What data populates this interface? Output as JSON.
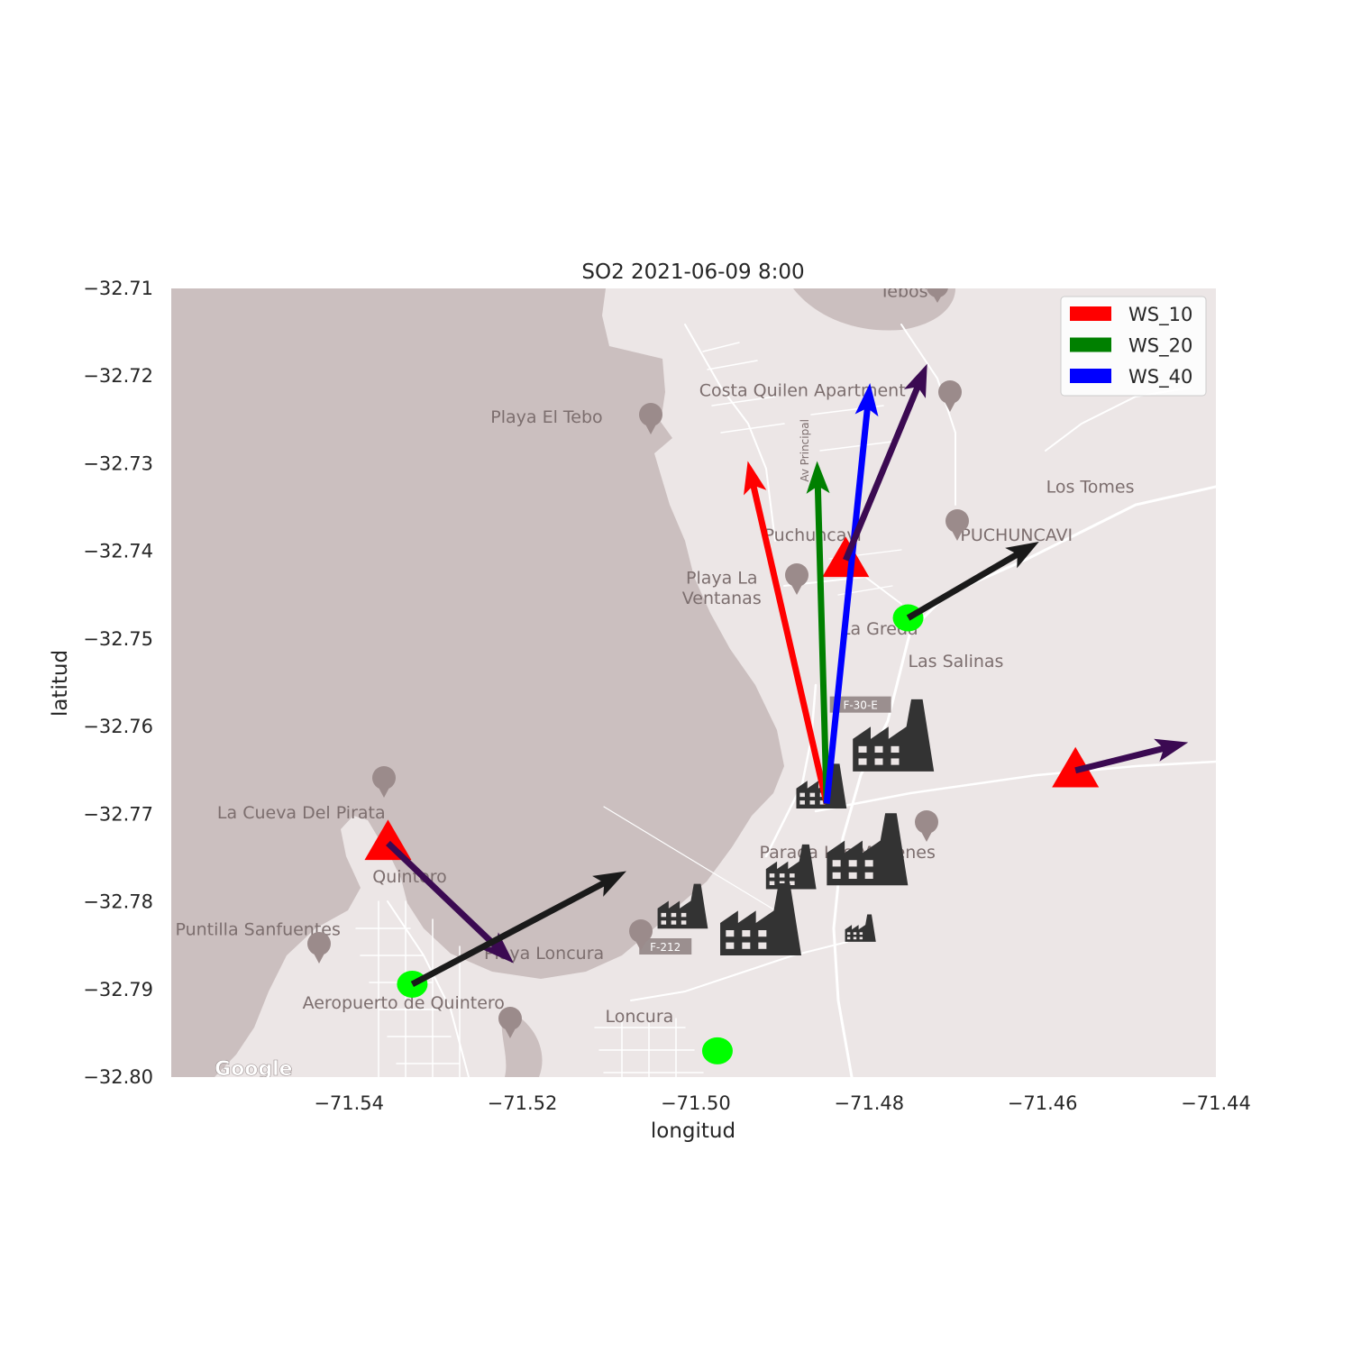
{
  "chart_data": {
    "type": "map-quiver",
    "title": "SO2 2021-06-09 8:00",
    "xlabel": "longitud",
    "ylabel": "latitud",
    "xlim": [
      -71.5605,
      -71.44
    ],
    "ylim": [
      -32.8,
      -32.71
    ],
    "xticks": [
      -71.54,
      -71.52,
      -71.5,
      -71.48,
      -71.46,
      -71.44
    ],
    "xtick_labels": [
      "−71.54",
      "−71.52",
      "−71.50",
      "−71.48",
      "−71.46",
      "−71.44"
    ],
    "yticks": [
      -32.71,
      -32.72,
      -32.73,
      -32.74,
      -32.75,
      -32.76,
      -32.77,
      -32.78,
      -32.79,
      -32.8
    ],
    "ytick_labels": [
      "−32.71",
      "−32.72",
      "−32.73",
      "−32.74",
      "−32.75",
      "−32.76",
      "−32.77",
      "−32.78",
      "−32.79",
      "−32.80"
    ],
    "legend": {
      "placement": "top-right",
      "entries": [
        {
          "label": "WS_10",
          "color": "#ff0000"
        },
        {
          "label": "WS_20",
          "color": "#008000"
        },
        {
          "label": "WS_40",
          "color": "#0000ff"
        }
      ]
    },
    "stations_triangle": [
      {
        "lon": -71.4827,
        "lat": -32.741
      },
      {
        "lon": -71.4562,
        "lat": -32.765
      },
      {
        "lon": -71.5355,
        "lat": -32.7733
      }
    ],
    "stations_circle": [
      {
        "lon": -71.4755,
        "lat": -32.7476
      },
      {
        "lon": -71.5327,
        "lat": -32.7894
      },
      {
        "lon": -71.4975,
        "lat": -32.797
      }
    ],
    "factories": [
      {
        "lon": -71.4772,
        "lat": -32.761,
        "size": "large"
      },
      {
        "lon": -71.4855,
        "lat": -32.7668,
        "size": "small"
      },
      {
        "lon": -71.4802,
        "lat": -32.774,
        "size": "large"
      },
      {
        "lon": -71.489,
        "lat": -32.776,
        "size": "small"
      },
      {
        "lon": -71.4925,
        "lat": -32.782,
        "size": "large"
      },
      {
        "lon": -71.5015,
        "lat": -32.7805,
        "size": "small"
      },
      {
        "lon": -71.481,
        "lat": -32.783,
        "size": "tiny"
      }
    ],
    "arrows": [
      {
        "series": "WS_10",
        "color": "#ff0000",
        "lon": -71.4849,
        "lat": -32.7688,
        "u": -0.0091,
        "v": 0.0391
      },
      {
        "series": "WS_20",
        "color": "#008000",
        "lon": -71.4849,
        "lat": -32.7688,
        "u": -0.0011,
        "v": 0.0391
      },
      {
        "series": "WS_40",
        "color": "#0000ff",
        "lon": -71.4849,
        "lat": -32.7688,
        "u": 0.005,
        "v": 0.048
      },
      {
        "series": "",
        "color": "#3b0a52",
        "lon": -71.4827,
        "lat": -32.741,
        "u": 0.0094,
        "v": 0.0224
      },
      {
        "series": "",
        "color": "#3b0a52",
        "lon": -71.4562,
        "lat": -32.765,
        "u": 0.013,
        "v": 0.0032
      },
      {
        "series": "",
        "color": "#3b0a52",
        "lon": -71.5355,
        "lat": -32.7733,
        "u": 0.0145,
        "v": -0.0137
      },
      {
        "series": "",
        "color": "#1a1a1a",
        "lon": -71.4755,
        "lat": -32.7476,
        "u": 0.0151,
        "v": 0.0087
      },
      {
        "series": "",
        "color": "#1a1a1a",
        "lon": -71.5327,
        "lat": -32.7894,
        "u": 0.0247,
        "v": 0.0129
      }
    ],
    "grid": false
  },
  "map": {
    "colors": {
      "sea": "#cbbfbf",
      "land": "#ece6e6",
      "road": "#ffffff",
      "text": "#7c6e6e"
    },
    "labels": [
      {
        "text": "Tebos",
        "lon": -71.476,
        "lat": -32.711
      },
      {
        "text": "Costa Quilen Apartment",
        "lon": -71.4877,
        "lat": -32.7223
      },
      {
        "text": "Playa El Tebo",
        "lon": -71.5172,
        "lat": -32.7253
      },
      {
        "text": "Av Principal",
        "lon": -71.487,
        "lat": -32.7285
      },
      {
        "text": "Los Tomes",
        "lon": -71.4545,
        "lat": -32.7333
      },
      {
        "text": "Puchuncavi",
        "lon": -71.4865,
        "lat": -32.7388
      },
      {
        "text": "PUCHUNCAVI",
        "lon": -71.463,
        "lat": -32.7388
      },
      {
        "text": "Playa La",
        "lon": -71.497,
        "lat": -32.7437
      },
      {
        "text": "Ventanas",
        "lon": -71.497,
        "lat": -32.746
      },
      {
        "text": "La Greda",
        "lon": -71.4788,
        "lat": -32.7495
      },
      {
        "text": "Las Salinas",
        "lon": -71.47,
        "lat": -32.7532
      },
      {
        "text": "F-30-E",
        "lon": -71.481,
        "lat": -32.758
      },
      {
        "text": "La Cueva Del Pirata",
        "lon": -71.5455,
        "lat": -32.7705
      },
      {
        "text": "Parada Los Maitenes",
        "lon": -71.4825,
        "lat": -32.775
      },
      {
        "text": "Quintero",
        "lon": -71.533,
        "lat": -32.7778
      },
      {
        "text": "Puntilla Sanfuentes",
        "lon": -71.5505,
        "lat": -32.7838
      },
      {
        "text": "F-212",
        "lon": -71.5035,
        "lat": -32.7856
      },
      {
        "text": "Playa Loncura",
        "lon": -71.5175,
        "lat": -32.7865
      },
      {
        "text": "Aeropuerto de Quintero",
        "lon": -71.5337,
        "lat": -32.7922
      },
      {
        "text": "Loncura",
        "lon": -71.5065,
        "lat": -32.7937
      },
      {
        "text": "Google",
        "lon": -71.5555,
        "lat": -32.7998
      }
    ]
  }
}
